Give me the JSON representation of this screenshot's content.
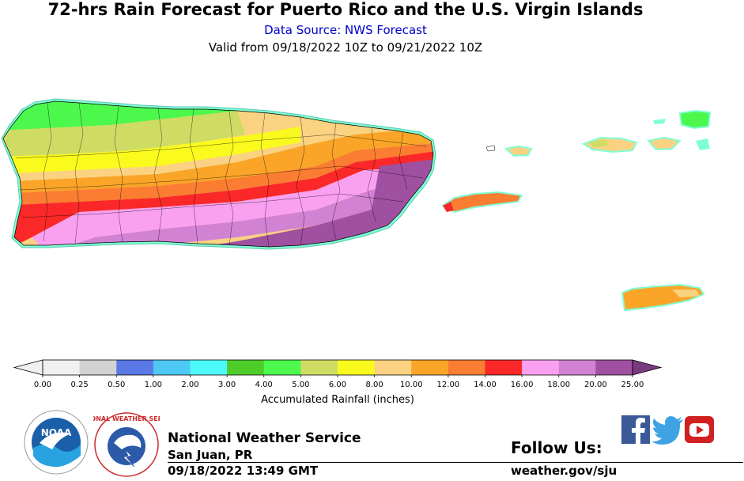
{
  "header": {
    "title": "72-hrs Rain Forecast for Puerto Rico and the U.S. Virgin Islands",
    "source": "Data Source: NWS Forecast",
    "valid": "Valid from 09/18/2022 10Z to 09/21/2022 10Z"
  },
  "legend": {
    "label": "Accumulated Rainfall (inches)",
    "ticks": [
      "0.00",
      "0.25",
      "0.50",
      "1.00",
      "2.00",
      "3.00",
      "4.00",
      "5.00",
      "6.00",
      "8.00",
      "10.00",
      "12.00",
      "14.00",
      "16.00",
      "18.00",
      "20.00",
      "25.00"
    ],
    "colors": [
      "#f0f0f0",
      "#d2d2d2",
      "#5a78e6",
      "#4ec8f5",
      "#4dfafa",
      "#4ecd2a",
      "#4df84d",
      "#cfdc64",
      "#fafa1e",
      "#fad282",
      "#faa528",
      "#fa7d32",
      "#fa2828",
      "#faa0f0",
      "#d282d2",
      "#a050a0",
      "#7a3a80"
    ]
  },
  "map": {
    "regions": [
      "Puerto Rico",
      "Vieques",
      "Culebra",
      "St. Thomas",
      "St. John",
      "St. Croix"
    ]
  },
  "footer": {
    "agency": "National Weather Service",
    "office": "San Juan, PR",
    "issued": "09/18/2022 13:49 GMT",
    "follow": "Follow Us:",
    "website": "weather.gov/sju",
    "noaa_logo": "NOAA",
    "nws_logo": "NATIONAL WEATHER SERVICE"
  },
  "icons": {
    "facebook": "facebook-icon",
    "twitter": "twitter-icon",
    "youtube": "youtube-icon"
  }
}
